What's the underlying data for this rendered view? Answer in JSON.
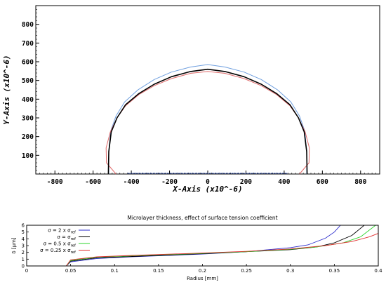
{
  "chart_data": [
    {
      "type": "line",
      "title": "",
      "xlabel": "X-Axis (x10^-6)",
      "ylabel": "Y-Axis (x10^-6)",
      "xlim": [
        -900,
        900
      ],
      "ylim": [
        0,
        900
      ],
      "x_ticks": [
        "-800",
        "-600",
        "-400",
        "-200",
        "0",
        "200",
        "400",
        "600",
        "800"
      ],
      "y_ticks": [
        "100",
        "200",
        "300",
        "400",
        "500",
        "600",
        "700",
        "800"
      ],
      "grid": false,
      "series": [
        {
          "color": "#000000",
          "points": [
            [
              -520,
              0
            ],
            [
              -518,
              120
            ],
            [
              -505,
              225
            ],
            [
              -475,
              300
            ],
            [
              -430,
              370
            ],
            [
              -360,
              430
            ],
            [
              -280,
              480
            ],
            [
              -190,
              520
            ],
            [
              -90,
              548
            ],
            [
              0,
              560
            ],
            [
              90,
              548
            ],
            [
              190,
              520
            ],
            [
              280,
              480
            ],
            [
              360,
              430
            ],
            [
              430,
              370
            ],
            [
              475,
              300
            ],
            [
              505,
              225
            ],
            [
              518,
              120
            ],
            [
              520,
              0
            ]
          ]
        },
        {
          "color": "#6f9fdf",
          "points": [
            [
              -518,
              0
            ],
            [
              -518,
              120
            ],
            [
              -508,
              230
            ],
            [
              -480,
              310
            ],
            [
              -435,
              385
            ],
            [
              -365,
              450
            ],
            [
              -280,
              505
            ],
            [
              -190,
              545
            ],
            [
              -90,
              572
            ],
            [
              0,
              585
            ],
            [
              90,
              572
            ],
            [
              190,
              545
            ],
            [
              280,
              505
            ],
            [
              365,
              450
            ],
            [
              435,
              385
            ],
            [
              480,
              310
            ],
            [
              508,
              230
            ],
            [
              518,
              120
            ],
            [
              518,
              0
            ]
          ]
        },
        {
          "color": "#e06b6b",
          "points": [
            [
              -480,
              0
            ],
            [
              -530,
              60
            ],
            [
              -532,
              140
            ],
            [
              -510,
              225
            ],
            [
              -475,
              300
            ],
            [
              -430,
              365
            ],
            [
              -360,
              425
            ],
            [
              -280,
              472
            ],
            [
              -190,
              510
            ],
            [
              -90,
              538
            ],
            [
              0,
              548
            ],
            [
              90,
              538
            ],
            [
              190,
              510
            ],
            [
              280,
              472
            ],
            [
              360,
              425
            ],
            [
              430,
              365
            ],
            [
              475,
              300
            ],
            [
              510,
              225
            ],
            [
              532,
              140
            ],
            [
              530,
              60
            ],
            [
              480,
              0
            ]
          ]
        }
      ]
    },
    {
      "type": "line",
      "title": "Microlayer thickness, effect of surface tension coefficient",
      "xlabel": "Radius [mm]",
      "ylabel": "δ [μm]",
      "xlim": [
        0,
        0.4
      ],
      "ylim": [
        0,
        6
      ],
      "x_ticks": [
        "0",
        "0.05",
        "0.1",
        "0.15",
        "0.2",
        "0.25",
        "0.3",
        "0.35",
        "0.4"
      ],
      "y_ticks": [
        "0",
        "1",
        "2",
        "3",
        "4",
        "5",
        "6"
      ],
      "legend_placement": "top-left",
      "series": [
        {
          "legend": {
            "pre": "σ = 2 x σ",
            "sub": "ref"
          },
          "color": "#2b2bcc",
          "points": [
            [
              0.045,
              0
            ],
            [
              0.05,
              0.6
            ],
            [
              0.08,
              1.1
            ],
            [
              0.12,
              1.35
            ],
            [
              0.2,
              1.75
            ],
            [
              0.25,
              2.1
            ],
            [
              0.3,
              2.7
            ],
            [
              0.32,
              3.1
            ],
            [
              0.34,
              4.1
            ],
            [
              0.35,
              5.0
            ],
            [
              0.357,
              6.0
            ]
          ]
        },
        {
          "legend": {
            "pre": "σ = σ",
            "sub": "ref"
          },
          "color": "#000000",
          "points": [
            [
              0.045,
              0
            ],
            [
              0.05,
              0.7
            ],
            [
              0.08,
              1.2
            ],
            [
              0.12,
              1.4
            ],
            [
              0.2,
              1.8
            ],
            [
              0.25,
              2.1
            ],
            [
              0.3,
              2.4
            ],
            [
              0.33,
              2.8
            ],
            [
              0.35,
              3.4
            ],
            [
              0.37,
              4.5
            ],
            [
              0.384,
              6.0
            ]
          ]
        },
        {
          "legend": {
            "pre": "σ = 0.5 x σ",
            "sub": "ref"
          },
          "color": "#2bd42b",
          "points": [
            [
              0.045,
              0
            ],
            [
              0.05,
              0.8
            ],
            [
              0.08,
              1.3
            ],
            [
              0.12,
              1.5
            ],
            [
              0.2,
              1.85
            ],
            [
              0.25,
              2.1
            ],
            [
              0.3,
              2.45
            ],
            [
              0.33,
              2.8
            ],
            [
              0.36,
              3.4
            ],
            [
              0.38,
              4.3
            ],
            [
              0.397,
              6.0
            ]
          ]
        },
        {
          "legend": {
            "pre": "σ = 0.25 x σ",
            "sub": "ref"
          },
          "color": "#e03030",
          "points": [
            [
              0.045,
              0
            ],
            [
              0.05,
              0.9
            ],
            [
              0.08,
              1.35
            ],
            [
              0.12,
              1.55
            ],
            [
              0.2,
              1.9
            ],
            [
              0.25,
              2.15
            ],
            [
              0.3,
              2.5
            ],
            [
              0.34,
              3.0
            ],
            [
              0.37,
              3.6
            ],
            [
              0.39,
              4.3
            ],
            [
              0.4,
              4.8
            ]
          ]
        }
      ]
    }
  ]
}
